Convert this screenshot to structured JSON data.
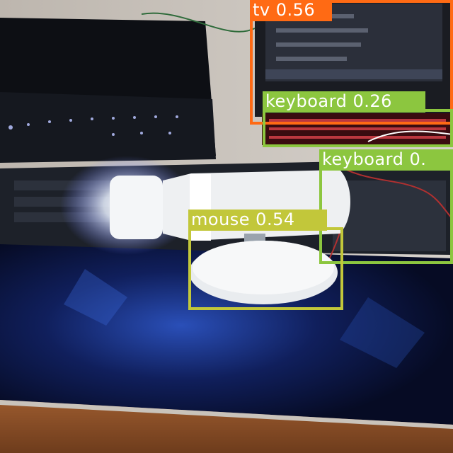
{
  "detections": [
    {
      "label": "tv 0.56",
      "color": "#ff6a14"
    },
    {
      "label": "keyboard 0.26",
      "color": "#8cc63f"
    },
    {
      "label": "keyboard 0.",
      "color": "#8cc63f"
    },
    {
      "label": "mouse 0.54",
      "color": "#c2c73a"
    }
  ]
}
